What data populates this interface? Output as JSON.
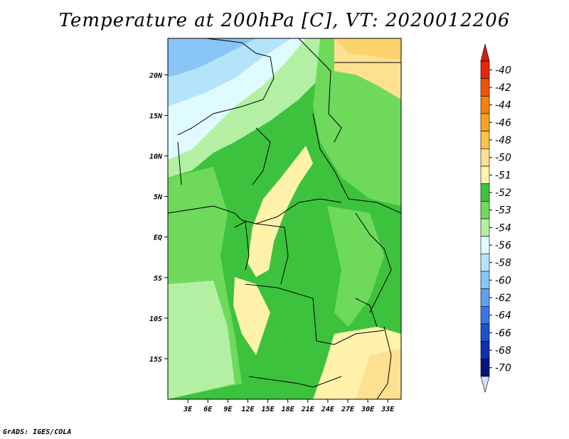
{
  "title": "Temperature at 200hPa [C], VT: 2020012206",
  "credit": "GrADS: IGES/COLA",
  "map": {
    "lon_ticks": [
      "3E",
      "6E",
      "9E",
      "12E",
      "15E",
      "18E",
      "21E",
      "24E",
      "27E",
      "30E",
      "33E"
    ],
    "lat_ticks": [
      "20N",
      "15N",
      "10N",
      "5N",
      "EQ",
      "5S",
      "10S",
      "15S"
    ],
    "lon_values": [
      3,
      6,
      9,
      12,
      15,
      18,
      21,
      24,
      27,
      30,
      33
    ],
    "lat_values": [
      20,
      15,
      10,
      5,
      0,
      -5,
      -10,
      -15
    ],
    "lon_range": [
      0,
      35
    ],
    "lat_range": [
      -20,
      24.5
    ]
  },
  "legend": {
    "levels": [
      {
        "label": "-40",
        "color": "#e8260a"
      },
      {
        "label": "-42",
        "color": "#f0520a"
      },
      {
        "label": "-44",
        "color": "#f6800d"
      },
      {
        "label": "-46",
        "color": "#f9a31c"
      },
      {
        "label": "-48",
        "color": "#fcc34a"
      },
      {
        "label": "-50",
        "color": "#fde191"
      },
      {
        "label": "-51",
        "color": "#fff3ab"
      },
      {
        "label": "-52",
        "color": "#3dc23d"
      },
      {
        "label": "-53",
        "color": "#6fd95c"
      },
      {
        "label": "-54",
        "color": "#b3f0a4"
      },
      {
        "label": "-56",
        "color": "#e0fbff"
      },
      {
        "label": "-58",
        "color": "#b4e4fc"
      },
      {
        "label": "-60",
        "color": "#89c5f6"
      },
      {
        "label": "-62",
        "color": "#629fec"
      },
      {
        "label": "-64",
        "color": "#3a78e0"
      },
      {
        "label": "-66",
        "color": "#1c52cc"
      },
      {
        "label": "-68",
        "color": "#0c31a8"
      },
      {
        "label": "-70",
        "color": "#061478"
      }
    ],
    "top_arrow_color": "#d81a0a",
    "bottom_arrow_color": "#dcdcff"
  }
}
